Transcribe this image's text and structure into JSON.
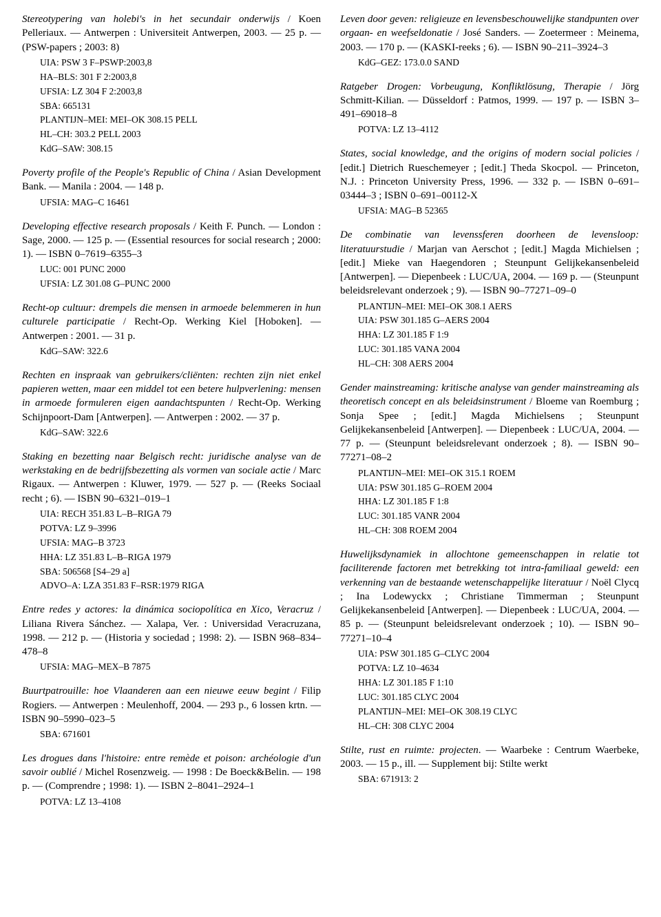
{
  "left": [
    {
      "seg": [
        {
          "t": "Stereotypering van holebi's in het secundair onderwijs",
          "i": true
        },
        {
          "t": " / Koen Pelleriaux. — Antwerpen : Universiteit Antwerpen, 2003. — 25 p. — (PSW-papers ; 2003: 8)"
        }
      ],
      "refs": [
        "UIA: PSW 3 F–PSWP:2003,8",
        "HA–BLS: 301 F 2:2003,8",
        "UFSIA: LZ 304 F 2:2003,8",
        "SBA: 665131",
        "PLANTIJN–MEI: MEI–OK 308.15 PELL",
        "HL–CH: 303.2 PELL 2003",
        "KdG–SAW: 308.15"
      ]
    },
    {
      "seg": [
        {
          "t": "Poverty profile of the People's Republic of China",
          "i": true
        },
        {
          "t": " / Asian Development Bank. — Manila : 2004. — 148 p."
        }
      ],
      "refs": [
        "UFSIA: MAG–C 16461"
      ]
    },
    {
      "seg": [
        {
          "t": "Developing effective research proposals",
          "i": true
        },
        {
          "t": " / Keith F. Punch. — London : Sage, 2000. — 125 p. — (Essential resources for social research ; 2000: 1). — ISBN 0–7619–6355–3"
        }
      ],
      "refs": [
        "LUC: 001 PUNC 2000",
        "UFSIA: LZ 301.08 G–PUNC 2000"
      ]
    },
    {
      "seg": [
        {
          "t": "Recht-op cultuur: drempels die mensen in armoede belemmeren in hun culturele participatie",
          "i": true
        },
        {
          "t": " / Recht-Op. Werking Kiel [Hoboken]. — Antwerpen : 2001. — 31 p."
        }
      ],
      "refs": [
        "KdG–SAW: 322.6"
      ]
    },
    {
      "seg": [
        {
          "t": "Rechten en inspraak van gebruikers/cliënten: rechten zijn niet enkel papieren wetten, maar een middel tot een betere hulpverlening: mensen in armoede formuleren eigen aandachtspunten",
          "i": true
        },
        {
          "t": " / Recht-Op. Werking Schijnpoort-Dam [Antwerpen]. — Antwerpen : 2002. — 37 p."
        }
      ],
      "refs": [
        "KdG–SAW: 322.6"
      ]
    },
    {
      "seg": [
        {
          "t": "Staking en bezetting naar Belgisch recht: juridische analyse van de werkstaking en de bedrijfsbezetting als vormen van sociale actie",
          "i": true
        },
        {
          "t": " / Marc Rigaux. — Antwerpen : Kluwer, 1979. — 527 p. — (Reeks Sociaal recht ; 6). — ISBN 90–6321–019–1"
        }
      ],
      "refs": [
        "UIA: RECH 351.83 L–B–RIGA 79",
        "POTVA: LZ 9–3996",
        "UFSIA: MAG–B 3723",
        "HHA: LZ 351.83 L–B–RIGA 1979",
        "SBA: 506568 [S4–29 a]",
        "ADVO–A: LZA 351.83 F–RSR:1979 RIGA"
      ]
    },
    {
      "seg": [
        {
          "t": "Entre redes y actores: la dinámica sociopolítica en Xico, Veracruz",
          "i": true
        },
        {
          "t": " / Liliana Rivera Sánchez. — Xalapa, Ver. : Universidad Veracruzana, 1998. — 212 p. — (Historia y sociedad ; 1998: 2). — ISBN 968–834–478–8"
        }
      ],
      "refs": [
        "UFSIA: MAG–MEX–B 7875"
      ]
    },
    {
      "seg": [
        {
          "t": "Buurtpatrouille: hoe Vlaanderen aan een nieuwe eeuw begint",
          "i": true
        },
        {
          "t": " / Filip Rogiers. — Antwerpen : Meulenhoff, 2004. — 293 p., 6 lossen krtn. — ISBN 90–5990–023–5"
        }
      ],
      "refs": [
        "SBA: 671601"
      ]
    },
    {
      "seg": [
        {
          "t": "Les drogues dans l'histoire: entre remède et poison: archéologie d'un savoir oublié",
          "i": true
        },
        {
          "t": " / Michel Rosenzweig. — 1998 : De Boeck&Belin. — 198 p. — (Comprendre ; 1998: 1). — ISBN 2–8041–2924–1"
        }
      ],
      "refs": [
        "POTVA: LZ 13–4108"
      ]
    }
  ],
  "right": [
    {
      "seg": [
        {
          "t": "Leven door geven: religieuze en levensbeschouwelijke standpunten over orgaan- en weefseldonatie",
          "i": true
        },
        {
          "t": " / José Sanders. — Zoetermeer : Meinema, 2003. — 170 p. — (KASKI-reeks ; 6). — ISBN 90–211–3924–3"
        }
      ],
      "refs": [
        "KdG–GEZ: 173.0.0 SAND"
      ]
    },
    {
      "seg": [
        {
          "t": "Ratgeber Drogen: Vorbeugung, Konfliktlösung, Therapie",
          "i": true
        },
        {
          "t": " / Jörg Schmitt-Kilian. — Düsseldorf : Patmos, 1999. — 197 p. — ISBN 3–491–69018–8"
        }
      ],
      "refs": [
        "POTVA: LZ 13–4112"
      ]
    },
    {
      "seg": [
        {
          "t": "States, social knowledge, and the origins of modern social policies",
          "i": true
        },
        {
          "t": " / [edit.] Dietrich Rueschemeyer ; [edit.] Theda Skocpol. — Princeton, N.J. : Princeton University Press, 1996. — 332 p. — ISBN 0–691–03444–3 ; ISBN 0–691–00112-X"
        }
      ],
      "refs": [
        "UFSIA: MAG–B 52365"
      ]
    },
    {
      "seg": [
        {
          "t": "De combinatie van levenssferen doorheen de levensloop: literatuurstudie",
          "i": true
        },
        {
          "t": " / Marjan van Aerschot ; [edit.] Magda Michielsen ; [edit.] Mieke van Haegendoren ; Steunpunt Gelijkekansenbeleid [Antwerpen]. — Diepenbeek : LUC/UA, 2004. — 169 p. — (Steunpunt beleidsrelevant onderzoek ; 9). — ISBN 90–77271–09–0"
        }
      ],
      "refs": [
        "PLANTIJN–MEI: MEI–OK 308.1 AERS",
        "UIA: PSW 301.185 G–AERS 2004",
        "HHA: LZ 301.185 F 1:9",
        "LUC: 301.185 VANA 2004",
        "HL–CH: 308 AERS 2004"
      ]
    },
    {
      "seg": [
        {
          "t": "Gender mainstreaming: kritische analyse van gender mainstreaming als theoretisch concept en als beleidsinstrument",
          "i": true
        },
        {
          "t": " / Bloeme van Roemburg ; Sonja Spee ; [edit.] Magda Michielsens ; Steunpunt Gelijkekansenbeleid [Antwerpen]. — Diepenbeek : LUC/UA, 2004. — 77 p. — (Steunpunt beleidsrelevant onderzoek ; 8). — ISBN 90–77271–08–2"
        }
      ],
      "refs": [
        "PLANTIJN–MEI: MEI–OK 315.1 ROEM",
        "UIA: PSW 301.185 G–ROEM 2004",
        "HHA: LZ 301.185 F 1:8",
        "LUC: 301.185 VANR 2004",
        "HL–CH: 308 ROEM 2004"
      ]
    },
    {
      "seg": [
        {
          "t": "Huwelijksdynamiek in allochtone gemeenschappen in relatie tot faciliterende factoren met betrekking tot intra-familiaal geweld: een verkenning van de bestaande wetenschappelijke literatuur",
          "i": true
        },
        {
          "t": " / Noël Clycq ; Ina Lodewyckx ; Christiane Timmerman ; Steunpunt Gelijkekansenbeleid [Antwerpen]. — Diepenbeek : LUC/UA, 2004. — 85 p. — (Steunpunt beleidsrelevant onderzoek ; 10). — ISBN 90–77271–10–4"
        }
      ],
      "refs": [
        "UIA: PSW 301.185 G–CLYC 2004",
        "POTVA: LZ 10–4634",
        "HHA: LZ 301.185 F 1:10",
        "LUC: 301.185 CLYC 2004",
        "PLANTIJN–MEI: MEI–OK 308.19 CLYC",
        "HL–CH: 308 CLYC 2004"
      ]
    },
    {
      "seg": [
        {
          "t": "Stilte, rust en ruimte: projecten",
          "i": true
        },
        {
          "t": ". — Waarbeke : Centrum Waerbeke, 2003. — 15 p., ill. — Supplement bij: Stilte werkt"
        }
      ],
      "refs": [
        "SBA: 671913: 2"
      ]
    }
  ]
}
